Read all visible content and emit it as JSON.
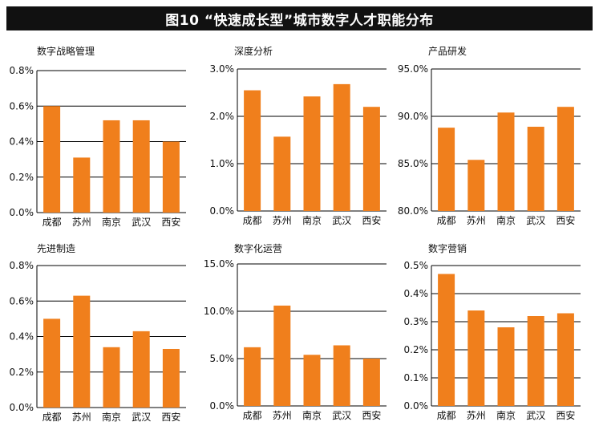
{
  "title": "图10 “快速成长型”城市数字人才职能分布",
  "colors": {
    "bar": "#F07F1C",
    "grid": "#000000",
    "title_bg": "#111111",
    "text": "#111111"
  },
  "chart_data": [
    {
      "type": "bar",
      "title": "数字战略管理",
      "categories": [
        "成都",
        "苏州",
        "南京",
        "武汉",
        "西安"
      ],
      "values": [
        0.6,
        0.31,
        0.52,
        0.52,
        0.4
      ],
      "ylim": [
        0,
        0.8
      ],
      "yticks": [
        0,
        0.2,
        0.4,
        0.6,
        0.8
      ],
      "ytick_labels": [
        "0.0%",
        "0.2%",
        "0.4%",
        "0.6%",
        "0.8%"
      ],
      "unit": "%"
    },
    {
      "type": "bar",
      "title": "深度分析",
      "categories": [
        "成都",
        "苏州",
        "南京",
        "武汉",
        "西安"
      ],
      "values": [
        2.55,
        1.57,
        2.42,
        2.68,
        2.2
      ],
      "ylim": [
        0,
        3.0
      ],
      "yticks": [
        0,
        1.0,
        2.0,
        3.0
      ],
      "ytick_labels": [
        "0.0%",
        "1.0%",
        "2.0%",
        "3.0%"
      ],
      "unit": "%"
    },
    {
      "type": "bar",
      "title": "产品研发",
      "categories": [
        "成都",
        "苏州",
        "南京",
        "武汉",
        "西安"
      ],
      "values": [
        88.8,
        85.4,
        90.4,
        88.9,
        91.0
      ],
      "ylim": [
        80,
        95
      ],
      "yticks": [
        80,
        85,
        90,
        95
      ],
      "ytick_labels": [
        "80.0%",
        "85.0%",
        "90.0%",
        "95.0%"
      ],
      "unit": "%"
    },
    {
      "type": "bar",
      "title": "先进制造",
      "categories": [
        "成都",
        "苏州",
        "南京",
        "武汉",
        "西安"
      ],
      "values": [
        0.5,
        0.63,
        0.34,
        0.43,
        0.33
      ],
      "ylim": [
        0,
        0.8
      ],
      "yticks": [
        0,
        0.2,
        0.4,
        0.6,
        0.8
      ],
      "ytick_labels": [
        "0.0%",
        "0.2%",
        "0.4%",
        "0.6%",
        "0.8%"
      ],
      "unit": "%"
    },
    {
      "type": "bar",
      "title": "数字化运营",
      "categories": [
        "成都",
        "苏州",
        "南京",
        "武汉",
        "西安"
      ],
      "values": [
        6.2,
        10.6,
        5.4,
        6.4,
        5.0
      ],
      "ylim": [
        0,
        15
      ],
      "yticks": [
        0,
        5,
        10,
        15
      ],
      "ytick_labels": [
        "0.0%",
        "5.0%",
        "10.0%",
        "15.0%"
      ],
      "unit": "%"
    },
    {
      "type": "bar",
      "title": "数字营销",
      "categories": [
        "成都",
        "苏州",
        "南京",
        "武汉",
        "西安"
      ],
      "values": [
        0.47,
        0.34,
        0.28,
        0.32,
        0.33
      ],
      "ylim": [
        0,
        0.5
      ],
      "yticks": [
        0,
        0.1,
        0.2,
        0.3,
        0.4,
        0.5
      ],
      "ytick_labels": [
        "0.0%",
        "0.1%",
        "0.2%",
        "0.3%",
        "0.4%",
        "0.5%"
      ],
      "unit": "%"
    }
  ]
}
